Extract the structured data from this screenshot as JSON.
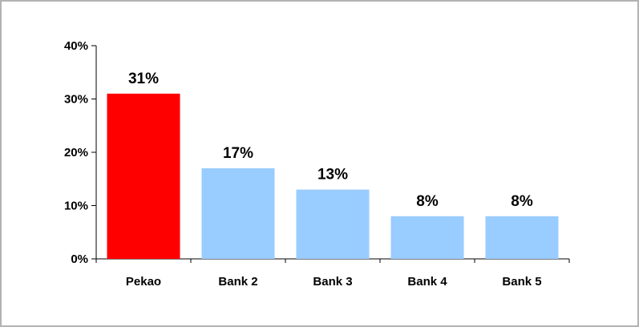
{
  "chart_data": {
    "type": "bar",
    "categories": [
      "Pekao",
      "Bank 2",
      "Bank 3",
      "Bank 4",
      "Bank 5"
    ],
    "values": [
      31,
      17,
      13,
      8,
      8
    ],
    "data_labels": [
      "31%",
      "17%",
      "13%",
      "8%",
      "8%"
    ],
    "title": "",
    "xlabel": "",
    "ylabel": "",
    "ylim": [
      0,
      40
    ],
    "y_ticks": [
      0,
      10,
      20,
      30,
      40
    ],
    "y_tick_labels": [
      "0%",
      "10%",
      "20%",
      "30%",
      "40%"
    ],
    "grid": false,
    "legend": "none",
    "colors": [
      "#ff0000",
      "#99ccff",
      "#99ccff",
      "#99ccff",
      "#99ccff"
    ]
  }
}
